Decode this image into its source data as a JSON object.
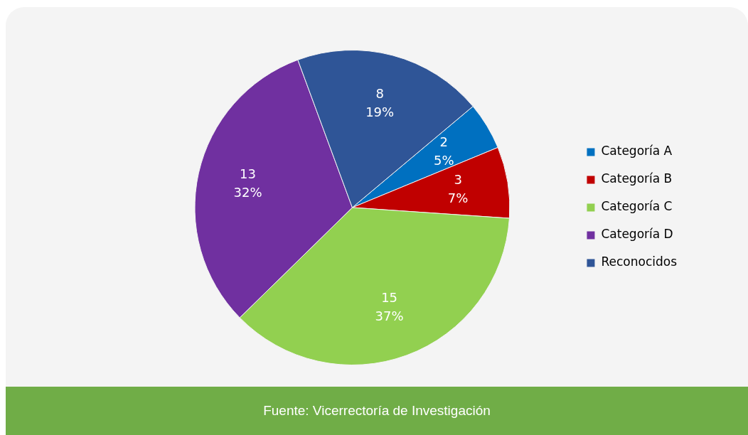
{
  "chart_data": {
    "type": "pie",
    "categories": [
      "Categoría A",
      "Categoría B",
      "Categoría C",
      "Categoría D",
      "Reconocidos"
    ],
    "values": [
      2,
      3,
      15,
      13,
      8
    ],
    "colors": [
      "#0070c0",
      "#c00000",
      "#92d050",
      "#7030a0",
      "#2f5597"
    ],
    "value_labels": [
      "2\n5%",
      "3\n7%",
      "15\n37%",
      "13\n32%",
      "8\n19%"
    ],
    "legend": "right",
    "annotations": [
      "Fuente: Vicerrectoría de Investigación"
    ]
  }
}
